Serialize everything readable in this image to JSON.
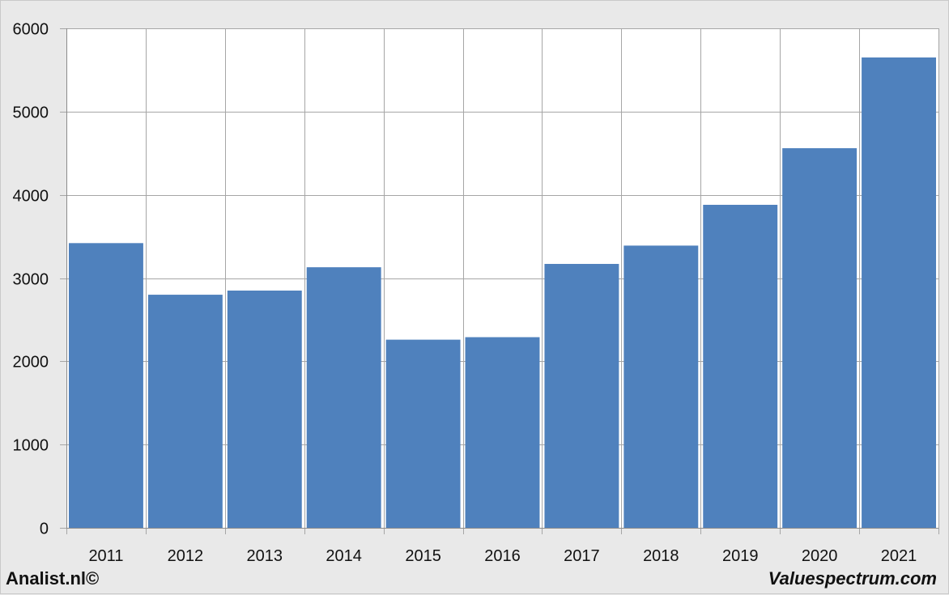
{
  "footer": {
    "left_credit": "Analist.nl©",
    "right_credit": "Valuespectrum.com"
  },
  "chart_data": {
    "type": "bar",
    "categories": [
      "2011",
      "2012",
      "2013",
      "2014",
      "2015",
      "2016",
      "2017",
      "2018",
      "2019",
      "2020",
      "2021"
    ],
    "values": [
      3420,
      2800,
      2850,
      3130,
      2260,
      2290,
      3170,
      3390,
      3880,
      4560,
      5650
    ],
    "ylim": [
      0,
      6000
    ],
    "yticks": [
      0,
      1000,
      2000,
      3000,
      4000,
      5000,
      6000
    ],
    "grid": true,
    "colors": {
      "bar": "#4f81bd",
      "grid": "#a6a6a6",
      "plot_background": "#ffffff",
      "page_background": "#e9e9e9"
    }
  }
}
